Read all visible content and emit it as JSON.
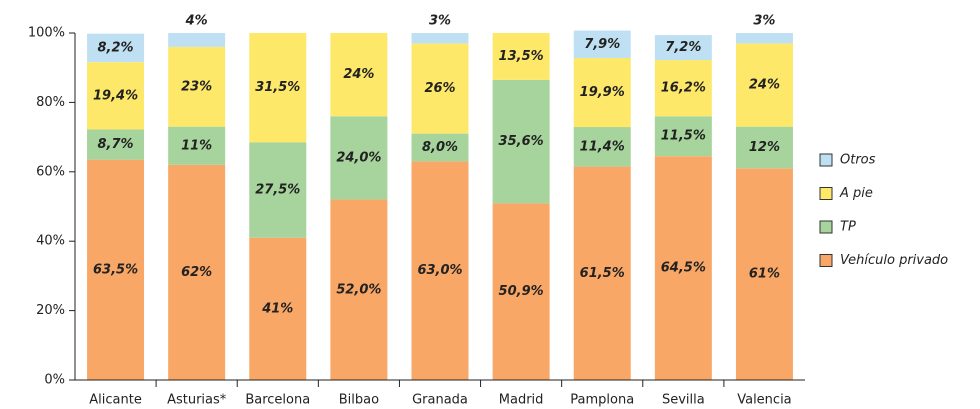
{
  "chart_data": {
    "type": "stacked_bar",
    "categories": [
      "Alicante",
      "Asturias*",
      "Barcelona",
      "Bilbao",
      "Granada",
      "Madrid",
      "Pamplona",
      "Sevilla",
      "Valencia"
    ],
    "series": [
      {
        "name": "Vehículo privado",
        "color": "#f8a766",
        "values": [
          63.5,
          62,
          41,
          52.0,
          63.0,
          50.9,
          61.5,
          64.5,
          61
        ],
        "value_labels": [
          "63,5%",
          "62%",
          "41%",
          "52,0%",
          "63,0%",
          "50,9%",
          "61,5%",
          "64,5%",
          "61%"
        ]
      },
      {
        "name": "TP",
        "color": "#a6d49c",
        "values": [
          8.7,
          11,
          27.5,
          24.0,
          8.0,
          35.6,
          11.4,
          11.5,
          12
        ],
        "value_labels": [
          "8,7%",
          "11%",
          "27,5%",
          "24,0%",
          "8,0%",
          "35,6%",
          "11,4%",
          "11,5%",
          "12%"
        ]
      },
      {
        "name": "A pie",
        "color": "#fde86a",
        "values": [
          19.4,
          23,
          31.5,
          24,
          26,
          13.5,
          19.9,
          16.2,
          24
        ],
        "value_labels": [
          "19,4%",
          "23%",
          "31,5%",
          "24%",
          "26%",
          "13,5%",
          "19,9%",
          "16,2%",
          "24%"
        ]
      },
      {
        "name": "Otros",
        "color": "#bfe0f3",
        "values": [
          8.2,
          4,
          null,
          null,
          3,
          null,
          7.9,
          7.2,
          3
        ],
        "value_labels": [
          "8,2%",
          "4%",
          null,
          null,
          "3%",
          null,
          "7,9%",
          "7,2%",
          "3%"
        ]
      }
    ],
    "ylim": [
      0,
      100
    ],
    "yticks": [
      {
        "value": 0,
        "label": "0%"
      },
      {
        "value": 20,
        "label": "20%"
      },
      {
        "value": 40,
        "label": "40%"
      },
      {
        "value": 60,
        "label": "60%"
      },
      {
        "value": 80,
        "label": "80%"
      },
      {
        "value": 100,
        "label": "100%"
      }
    ]
  }
}
